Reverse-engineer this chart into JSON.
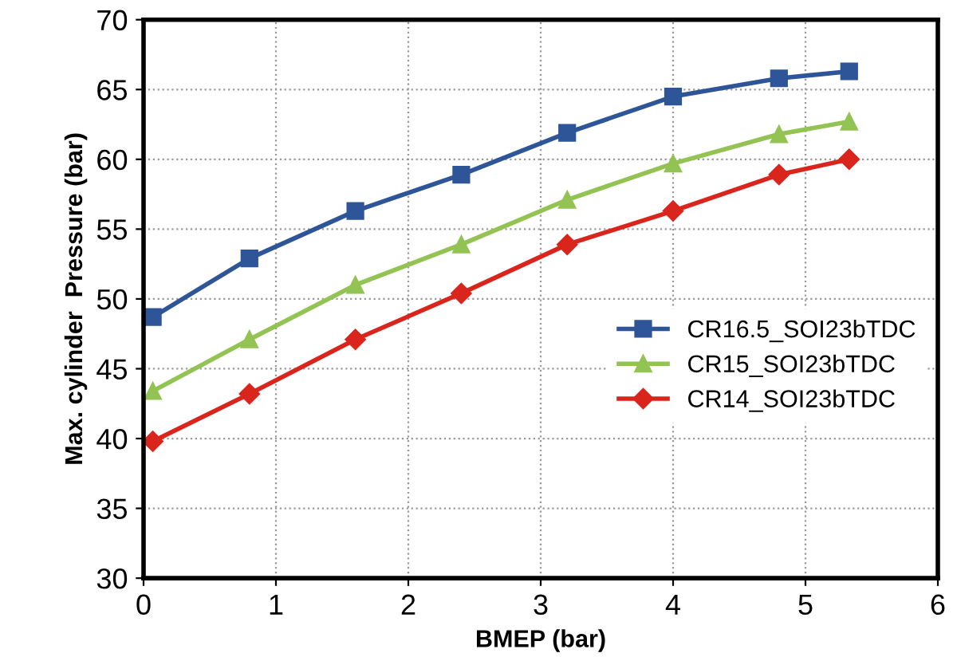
{
  "chart_data": {
    "type": "line",
    "xlabel": "BMEP (bar)",
    "ylabel": "Max. cylinder  Pressure (bar)",
    "x": [
      0.07,
      0.8,
      1.6,
      2.4,
      3.2,
      4.0,
      4.8,
      5.33
    ],
    "series": [
      {
        "name": "CR16.5_SOI23bTDC",
        "color": "#2e5597",
        "marker": "square",
        "values": [
          48.7,
          52.9,
          56.3,
          58.9,
          61.9,
          64.5,
          65.8,
          66.3
        ]
      },
      {
        "name": "CR15_SOI23bTDC",
        "color": "#92c353",
        "marker": "triangle",
        "values": [
          43.4,
          47.1,
          51.0,
          53.9,
          57.1,
          59.7,
          61.8,
          62.7
        ]
      },
      {
        "name": "CR14_SOI23bTDC",
        "color": "#d9251c",
        "marker": "diamond",
        "values": [
          39.8,
          43.2,
          47.1,
          50.4,
          53.9,
          56.3,
          58.9,
          60.0
        ]
      }
    ],
    "xlim": [
      0,
      6
    ],
    "xticks": [
      0,
      1,
      2,
      3,
      4,
      5,
      6
    ],
    "ylim": [
      30,
      70
    ],
    "yticks": [
      30,
      35,
      40,
      45,
      50,
      55,
      60,
      65,
      70
    ],
    "grid": true,
    "legend": "right",
    "line_style": "solid"
  }
}
